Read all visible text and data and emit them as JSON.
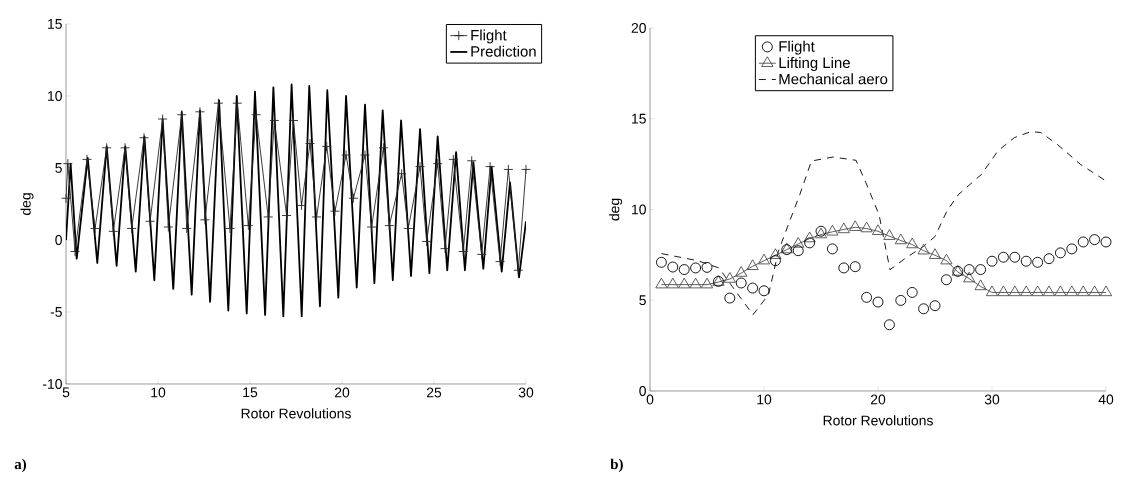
{
  "chart_data": [
    {
      "type": "line",
      "xlabel": "Rotor Revolutions",
      "ylabel": "deg",
      "xlim": [
        5,
        30
      ],
      "ylim": [
        -10,
        15
      ],
      "xticks": [
        5,
        10,
        15,
        20,
        25,
        30
      ],
      "yticks": [
        -10,
        -5,
        0,
        5,
        10,
        15
      ],
      "legend": "top right",
      "annotations": [
        "a)"
      ],
      "series": [
        {
          "name": "Flight",
          "color": "#262626",
          "marker": "cross",
          "line_style": "solid",
          "x": [
            5,
            5.1,
            5.49,
            6.14,
            6.58,
            7.21,
            7.57,
            8.21,
            8.57,
            9.24,
            9.57,
            10.25,
            10.56,
            11.29,
            11.56,
            12.28,
            12.55,
            13.28,
            13.91,
            14.31,
            14.91,
            15.33,
            15.99,
            16.32,
            16.99,
            17.36,
            17.8,
            18.26,
            18.62,
            19.17,
            19.62,
            20.22,
            20.62,
            21.25,
            21.61,
            22.25,
            22.57,
            23.24,
            23.6,
            24.24,
            24.6,
            25.2,
            25.6,
            26.05,
            26.59,
            27.05,
            27.59,
            28.05,
            28.59,
            29.04,
            29.58,
            30
          ],
          "values": [
            2.9,
            5.3,
            -0.8,
            5.6,
            0.8,
            6.4,
            0.6,
            6.4,
            0.8,
            7.1,
            1.3,
            8.4,
            0.9,
            8.7,
            0.8,
            8.9,
            1.4,
            9.5,
            0.8,
            9.5,
            1.0,
            8.7,
            1.6,
            8.3,
            1.7,
            8.3,
            2.4,
            6.7,
            1.6,
            6.5,
            2.0,
            5.9,
            2.9,
            5.9,
            0.9,
            6.4,
            1.0,
            4.6,
            0.8,
            5.1,
            -0.1,
            5.3,
            -0.6,
            5.6,
            -0.8,
            5.5,
            -1.0,
            5.1,
            -1.5,
            4.9,
            -2.1,
            4.9
          ]
        },
        {
          "name": "Prediction",
          "color": "#000000",
          "marker": "none",
          "line_style": "solid",
          "x": [
            5,
            5.25,
            5.58,
            6.18,
            6.7,
            7.21,
            7.75,
            8.22,
            8.79,
            9.26,
            9.8,
            10.25,
            10.83,
            11.29,
            11.83,
            12.28,
            12.83,
            13.32,
            13.82,
            14.28,
            14.82,
            15.27,
            15.82,
            16.27,
            16.81,
            17.26,
            17.81,
            18.22,
            18.8,
            19.2,
            19.8,
            20.22,
            20.8,
            21.25,
            21.76,
            22.21,
            22.76,
            23.21,
            23.75,
            24.24,
            24.75,
            25.2,
            25.72,
            26.2,
            26.68,
            27.14,
            27.68,
            28.13,
            28.68,
            29.13,
            29.62,
            30
          ],
          "values": [
            0,
            5.3,
            -1.3,
            5.7,
            -1.6,
            6.5,
            -1.8,
            6.5,
            -2.2,
            7.2,
            -2.8,
            8.4,
            -3.4,
            8.9,
            -3.8,
            9.0,
            -4.3,
            9.7,
            -4.9,
            10.0,
            -5.1,
            10.3,
            -5.2,
            10.6,
            -5.3,
            10.8,
            -5.3,
            10.7,
            -4.6,
            10.4,
            -4.0,
            10.0,
            -3.3,
            9.4,
            -3.0,
            9.0,
            -2.8,
            8.3,
            -2.5,
            7.7,
            -2.3,
            7.2,
            -2.1,
            6.1,
            -2.1,
            5.4,
            -2.0,
            5.1,
            -2.2,
            4.0,
            -2.6,
            1.3
          ]
        }
      ]
    },
    {
      "type": "line",
      "xlabel": "Rotor Revolutions",
      "ylabel": "deg",
      "xlim": [
        0,
        40
      ],
      "ylim": [
        0,
        20
      ],
      "xticks": [
        0,
        10,
        20,
        30,
        40
      ],
      "yticks": [
        0,
        5,
        10,
        15,
        20
      ],
      "legend": "top",
      "annotations": [
        "b)"
      ],
      "x": [
        1,
        2,
        3,
        4,
        5,
        6,
        7,
        8,
        9,
        10,
        11,
        12,
        13,
        14,
        15,
        16,
        17,
        18,
        19,
        20,
        21,
        22,
        23,
        24,
        25,
        26,
        27,
        28,
        29,
        30,
        31,
        32,
        33,
        34,
        35,
        36,
        37,
        38,
        39,
        40
      ],
      "series": [
        {
          "name": "Flight",
          "type": "scatter",
          "color": "#000000",
          "marker": "circle",
          "values": [
            7.09,
            6.83,
            6.69,
            6.78,
            6.81,
            6.04,
            5.12,
            5.95,
            5.67,
            5.52,
            7.18,
            7.79,
            7.73,
            8.16,
            8.8,
            7.83,
            6.78,
            6.85,
            5.16,
            4.9,
            3.65,
            4.99,
            5.43,
            4.53,
            4.7,
            6.13,
            6.59,
            6.69,
            6.69,
            7.15,
            7.37,
            7.37,
            7.15,
            7.09,
            7.29,
            7.61,
            7.83,
            8.21,
            8.34,
            8.21
          ]
        },
        {
          "name": "Lifting Line",
          "color": "#4d4d4d",
          "marker": "triangle",
          "line_style": "solid",
          "values": [
            5.86,
            5.86,
            5.86,
            5.86,
            5.86,
            6.0,
            6.17,
            6.5,
            6.87,
            7.18,
            7.48,
            7.79,
            8.1,
            8.4,
            8.62,
            8.77,
            8.9,
            9.02,
            8.95,
            8.8,
            8.53,
            8.29,
            8.07,
            7.73,
            7.48,
            7.18,
            6.56,
            6.19,
            5.76,
            5.43,
            5.43,
            5.43,
            5.43,
            5.43,
            5.43,
            5.43,
            5.43,
            5.43,
            5.43,
            5.43
          ]
        },
        {
          "name": "Mechanical aero",
          "color": "#000000",
          "marker": "none",
          "line_style": "dashed",
          "x": [
            1.01,
            4.17,
            6.05,
            7.21,
            9.03,
            10.39,
            11.26,
            12.13,
            13.14,
            14.16,
            16.04,
            18.07,
            18.94,
            20.09,
            21.05,
            22.41,
            24.0,
            25.01,
            26.03,
            27.05,
            29.07,
            30.51,
            31.96,
            33.41,
            34.28,
            35.72,
            37.75,
            40.0
          ],
          "values": [
            7.57,
            7.18,
            6.78,
            5.76,
            4.2,
            5.3,
            7.69,
            9.16,
            10.82,
            12.67,
            12.89,
            12.71,
            11.47,
            9.72,
            6.68,
            7.32,
            7.97,
            8.52,
            9.9,
            10.82,
            11.93,
            13.22,
            13.96,
            14.29,
            14.24,
            13.59,
            12.49,
            11.57
          ]
        }
      ]
    }
  ]
}
